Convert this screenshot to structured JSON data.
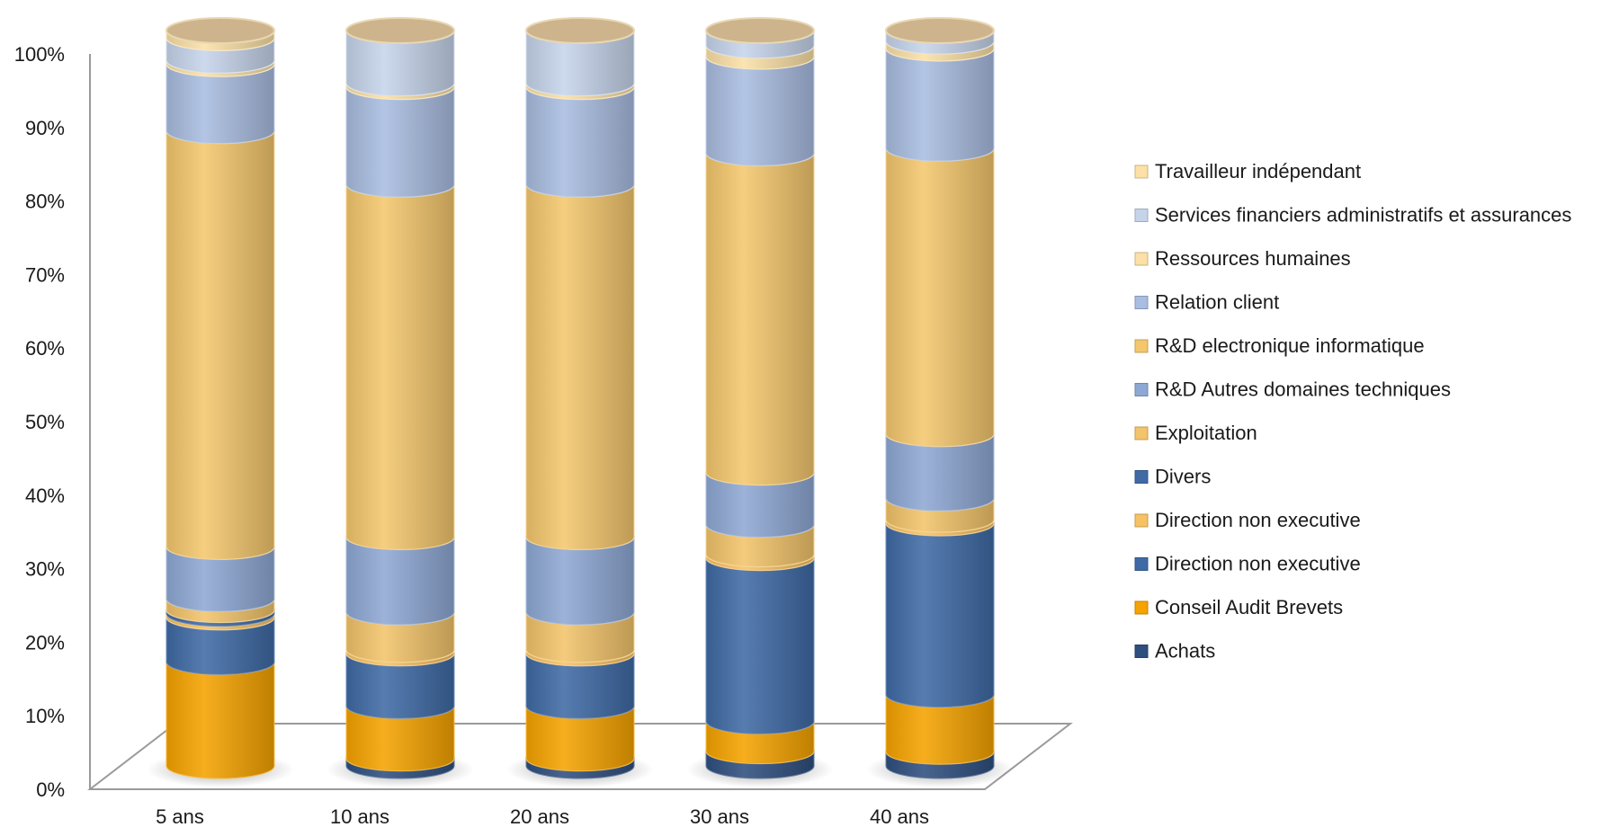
{
  "chart_data": {
    "type": "bar",
    "stacked": true,
    "percent": true,
    "style": "3d-cylinder",
    "title": "",
    "xlabel": "",
    "ylabel": "",
    "ylim": [
      0,
      100
    ],
    "y_ticks": [
      "0%",
      "10%",
      "20%",
      "30%",
      "40%",
      "50%",
      "60%",
      "70%",
      "80%",
      "90%",
      "100%"
    ],
    "categories": [
      "5 ans",
      "10 ans",
      "20 ans",
      "30 ans",
      "40 ans"
    ],
    "legend_position": "right",
    "series": [
      {
        "name": "Achats",
        "color": "#2f4f7f",
        "values": [
          0,
          1,
          1,
          2,
          2
        ]
      },
      {
        "name": "Conseil Audit Brevets",
        "color": "#f5a300",
        "values": [
          14,
          7,
          7,
          4,
          8
        ]
      },
      {
        "name": "Direction non executive",
        "color": "#3f6aa5",
        "values": [
          6,
          7,
          7,
          22,
          24
        ]
      },
      {
        "name": "Direction non executive",
        "color": "#f7c264",
        "values": [
          0.5,
          0.5,
          0.5,
          0.5,
          0.5
        ]
      },
      {
        "name": "Divers",
        "color": "#3f6aa5",
        "values": [
          0.5,
          0,
          0,
          0,
          0
        ]
      },
      {
        "name": "Exploitation",
        "color": "#f2c46b",
        "values": [
          1.5,
          5,
          5,
          4,
          3
        ]
      },
      {
        "name": "R&D Autres domaines techniques",
        "color": "#8ea8d4",
        "values": [
          7,
          10,
          10,
          7,
          9
        ]
      },
      {
        "name": "R&D electronique informatique",
        "color": "#f4c76d",
        "values": [
          56,
          47,
          47,
          43,
          40
        ]
      },
      {
        "name": "Relation client",
        "color": "#a9bde0",
        "values": [
          9,
          13,
          13,
          13,
          14
        ]
      },
      {
        "name": "Ressources humaines",
        "color": "#fbe0a7",
        "values": [
          0.5,
          0.5,
          0.5,
          1.5,
          1
        ]
      },
      {
        "name": "Services financiers administratifs et assurances",
        "color": "#c6d4ea",
        "values": [
          3,
          7,
          7,
          2,
          1.5
        ]
      },
      {
        "name": "Travailleur indépendant",
        "color": "#fbe0a7",
        "values": [
          1,
          0,
          0,
          0,
          0
        ]
      }
    ]
  }
}
